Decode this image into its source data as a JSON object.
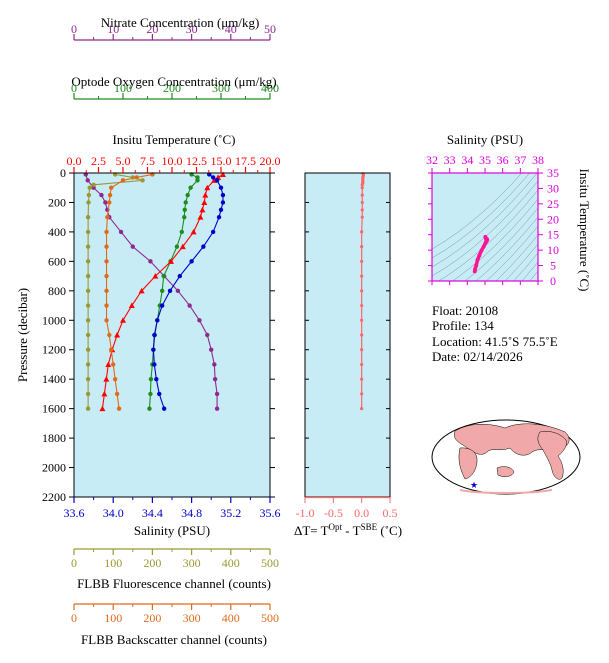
{
  "colors": {
    "nitrate": "#8e2a8e",
    "oxygen": "#1e8c1e",
    "temperature": "#ff0000",
    "salinity": "#0000cc",
    "fluorescence": "#999933",
    "backscatter": "#e06a1a",
    "delta_t": "#ff6666",
    "ts_axis": "#dd00dd",
    "plot_bg": "#c8ecf6",
    "land": "#f0a8a8"
  },
  "info": {
    "float": "Float:  20108",
    "profile": "Profile:  134",
    "location": "Location:  41.5˚S  75.5˚E",
    "date": "Date:  02/14/2026"
  },
  "chart_data": [
    {
      "id": "main-profile",
      "type": "line",
      "ylabel": "Pressure (decibar)",
      "ylim": [
        2200,
        0
      ],
      "yticks": [
        "0",
        "200",
        "400",
        "600",
        "800",
        "1000",
        "1200",
        "1400",
        "1600",
        "1800",
        "2000",
        "2200"
      ],
      "grid": false,
      "axes": {
        "nitrate": {
          "title": "Nitrate Concentration (μm/kg)",
          "range": [
            0,
            50
          ],
          "ticks": [
            "0",
            "10",
            "20",
            "30",
            "40",
            "50"
          ]
        },
        "oxygen": {
          "title": "Optode Oxygen Concentration (μm/kg)",
          "range": [
            0,
            400
          ],
          "ticks": [
            "0",
            "100",
            "200",
            "300",
            "400"
          ]
        },
        "temperature": {
          "title": "Insitu Temperature (˚C)",
          "range": [
            0,
            20
          ],
          "ticks": [
            "0.0",
            "2.5",
            "5.0",
            "7.5",
            "10.0",
            "12.5",
            "15.0",
            "17.5",
            "20.0"
          ]
        },
        "salinity": {
          "title": "Salinity (PSU)",
          "range": [
            33.6,
            35.6
          ],
          "ticks": [
            "33.6",
            "34.0",
            "34.4",
            "34.8",
            "35.2",
            "35.6"
          ]
        },
        "fluorescence": {
          "title": "FLBB Fluorescence channel (counts)",
          "range": [
            0,
            500
          ],
          "ticks": [
            "0",
            "100",
            "200",
            "300",
            "400",
            "500"
          ]
        },
        "backscatter": {
          "title": "FLBB Backscatter channel (counts)",
          "range": [
            0,
            500
          ],
          "ticks": [
            "0",
            "100",
            "200",
            "300",
            "400",
            "500"
          ]
        }
      },
      "series": [
        {
          "key": "nitrate",
          "marker": "circle",
          "pressure": [
            10,
            50,
            100,
            150,
            200,
            250,
            300,
            400,
            500,
            600,
            700,
            800,
            900,
            1000,
            1100,
            1200,
            1300,
            1400,
            1500,
            1600
          ],
          "values": [
            3.0,
            3.5,
            5.0,
            7.0,
            8.0,
            8.5,
            9.0,
            12.0,
            15.0,
            19.5,
            23.0,
            26.5,
            29.5,
            32.0,
            34.0,
            35.0,
            35.8,
            36.0,
            36.5,
            36.5
          ]
        },
        {
          "key": "oxygen",
          "marker": "circle",
          "pressure": [
            10,
            30,
            50,
            100,
            150,
            200,
            250,
            300,
            400,
            500,
            600,
            700,
            800,
            900,
            1000,
            1100,
            1200,
            1300,
            1400,
            1500,
            1600
          ],
          "values": [
            240,
            252,
            252,
            238,
            232,
            228,
            226,
            225,
            220,
            210,
            197,
            183,
            180,
            175,
            170,
            165,
            162,
            160,
            157,
            156,
            154
          ]
        },
        {
          "key": "temperature",
          "marker": "triangle",
          "pressure": [
            10,
            30,
            50,
            100,
            150,
            200,
            250,
            300,
            400,
            500,
            600,
            700,
            800,
            900,
            1000,
            1100,
            1200,
            1300,
            1400,
            1500,
            1600
          ],
          "values": [
            15.2,
            14.7,
            14.3,
            13.6,
            13.4,
            13.3,
            13.1,
            12.9,
            12.2,
            11.1,
            9.9,
            8.3,
            6.9,
            5.9,
            5.0,
            4.4,
            3.9,
            3.5,
            3.3,
            3.1,
            2.9
          ]
        },
        {
          "key": "salinity",
          "marker": "circle",
          "pressure": [
            10,
            30,
            50,
            100,
            150,
            200,
            250,
            300,
            400,
            500,
            600,
            700,
            800,
            900,
            1000,
            1100,
            1200,
            1300,
            1400,
            1500,
            1600
          ],
          "values": [
            34.98,
            35.02,
            35.06,
            35.1,
            35.12,
            35.12,
            35.1,
            35.08,
            35.02,
            34.92,
            34.8,
            34.68,
            34.58,
            34.5,
            34.45,
            34.42,
            34.41,
            34.42,
            34.44,
            34.47,
            34.52
          ]
        },
        {
          "key": "fluorescence",
          "marker": "circle",
          "pressure": [
            10,
            30,
            50,
            80,
            100,
            150,
            200,
            300,
            400,
            500,
            600,
            700,
            800,
            900,
            1000,
            1100,
            1200,
            1300,
            1400,
            1500,
            1600
          ],
          "values": [
            105,
            150,
            175,
            50,
            40,
            38,
            37,
            36,
            36,
            36,
            36,
            36,
            36,
            36,
            36,
            36,
            36,
            36,
            36,
            36,
            36
          ]
        },
        {
          "key": "backscatter",
          "marker": "circle",
          "pressure": [
            10,
            30,
            50,
            100,
            150,
            200,
            300,
            400,
            500,
            600,
            700,
            800,
            900,
            1000,
            1100,
            1200,
            1300,
            1400,
            1500,
            1600
          ],
          "values": [
            200,
            160,
            125,
            95,
            92,
            90,
            85,
            83,
            83,
            83,
            83,
            83,
            83,
            83,
            90,
            95,
            100,
            105,
            110,
            115
          ]
        }
      ]
    },
    {
      "id": "delta-t",
      "type": "line",
      "xlabel": "ΔT= T",
      "xlabel_sup1": "Opt",
      "xlabel_mid": " - T",
      "xlabel_sup2": "SBE",
      "xlabel_unit": " (˚C)",
      "xlim": [
        -1.0,
        0.5
      ],
      "xticks": [
        "-1.0",
        "-0.5",
        "0.0",
        "0.5"
      ],
      "ylim": [
        2200,
        0
      ],
      "series": [
        {
          "marker": "circle",
          "pressure": [
            5,
            10,
            20,
            30,
            40,
            50,
            60,
            70,
            80,
            100,
            150,
            200,
            250,
            300,
            400,
            500,
            600,
            700,
            800,
            900,
            1000,
            1100,
            1200,
            1300,
            1400,
            1500,
            1600
          ],
          "values": [
            0.02,
            0.03,
            0.03,
            0.02,
            0.02,
            0.02,
            0.02,
            0.02,
            0.01,
            0.01,
            0.01,
            0.01,
            0.01,
            0.01,
            0.0,
            0.0,
            0.0,
            0.0,
            0.0,
            0.0,
            0.0,
            0.0,
            0.0,
            0.0,
            0.0,
            0.0,
            0.0
          ]
        }
      ]
    },
    {
      "id": "ts-diagram",
      "type": "scatter",
      "xlabel": "Salinity (PSU)",
      "ylabel": "Insitu Temperature (˚C)",
      "xlim": [
        32,
        38
      ],
      "ylim": [
        0,
        35
      ],
      "xticks": [
        "32",
        "33",
        "34",
        "35",
        "36",
        "37",
        "38"
      ],
      "yticks": [
        "0",
        "5",
        "10",
        "15",
        "20",
        "25",
        "30",
        "35"
      ],
      "series": [
        {
          "x": [
            34.42,
            34.44,
            34.5,
            34.58,
            34.68,
            34.8,
            34.92,
            35.02,
            35.1,
            35.12,
            35.12,
            35.08,
            35.02
          ],
          "y": [
            3.1,
            3.9,
            5.0,
            6.9,
            8.3,
            9.9,
            11.1,
            12.2,
            13.6,
            13.4,
            13.3,
            12.9,
            14.3
          ]
        }
      ]
    }
  ]
}
